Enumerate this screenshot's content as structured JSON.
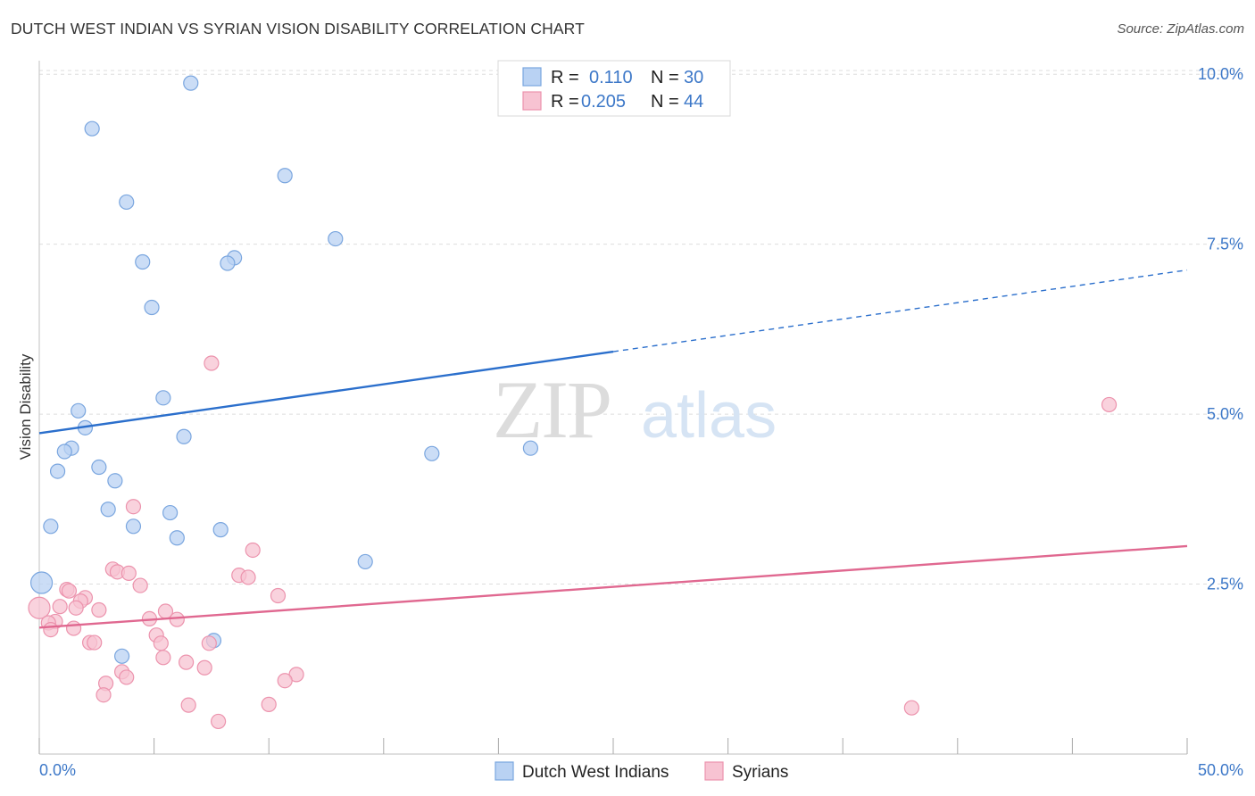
{
  "title": "DUTCH WEST INDIAN VS SYRIAN VISION DISABILITY CORRELATION CHART",
  "source": "Source: ZipAtlas.com",
  "watermark": {
    "zip": "ZIP",
    "atlas": "atlas"
  },
  "legend": {
    "series": [
      {
        "r_label": "R =",
        "r_value": "0.110",
        "n_label": "N =",
        "n_value": "30"
      },
      {
        "r_label": "R =",
        "r_value": "0.205",
        "n_label": "N =",
        "n_value": "44"
      }
    ]
  },
  "bottom_legend": [
    "Dutch West Indians",
    "Syrians"
  ],
  "colors": {
    "blue_fill": "#b9d2f3",
    "blue_stroke": "#7aa6df",
    "blue_line": "#2b6fcc",
    "pink_fill": "#f7c3d2",
    "pink_stroke": "#ec93ad",
    "pink_line": "#e06890",
    "tick_text": "#3d78c8",
    "grid": "#dddddd"
  },
  "chart_data": {
    "type": "scatter",
    "title": "DUTCH WEST INDIAN VS SYRIAN VISION DISABILITY CORRELATION CHART",
    "xlabel": "",
    "ylabel": "Vision Disability",
    "xlim": [
      0,
      50
    ],
    "ylim": [
      0,
      10.2
    ],
    "x_tick_labels": [
      "0.0%",
      "50.0%"
    ],
    "y_ticks": [
      2.5,
      5.0,
      7.5,
      10.0
    ],
    "y_tick_labels": [
      "2.5%",
      "5.0%",
      "7.5%",
      "10.0%"
    ],
    "series": [
      {
        "name": "Dutch West Indians",
        "r": 0.11,
        "n": 30,
        "points": [
          [
            6.6,
            9.87
          ],
          [
            2.3,
            9.2
          ],
          [
            10.7,
            8.51
          ],
          [
            3.8,
            8.12
          ],
          [
            12.9,
            7.58
          ],
          [
            8.5,
            7.3
          ],
          [
            4.5,
            7.24
          ],
          [
            8.2,
            7.22
          ],
          [
            4.9,
            6.57
          ],
          [
            5.4,
            5.24
          ],
          [
            1.7,
            5.05
          ],
          [
            2.0,
            4.8
          ],
          [
            6.3,
            4.67
          ],
          [
            1.4,
            4.5
          ],
          [
            1.1,
            4.45
          ],
          [
            17.1,
            4.42
          ],
          [
            21.4,
            4.5
          ],
          [
            0.8,
            4.16
          ],
          [
            2.6,
            4.22
          ],
          [
            3.3,
            4.02
          ],
          [
            3.0,
            3.6
          ],
          [
            5.7,
            3.55
          ],
          [
            0.5,
            3.35
          ],
          [
            4.1,
            3.35
          ],
          [
            7.9,
            3.3
          ],
          [
            6.0,
            3.18
          ],
          [
            14.2,
            2.83
          ],
          [
            0.1,
            2.52
          ],
          [
            7.6,
            1.67
          ],
          [
            3.6,
            1.44
          ]
        ],
        "trend": {
          "x0": 0,
          "y0": 4.72,
          "x1": 25,
          "y1": 5.92,
          "x_extend": 50,
          "y_extend": 7.12
        }
      },
      {
        "name": "Syrians",
        "r": 0.205,
        "n": 44,
        "points": [
          [
            7.5,
            5.75
          ],
          [
            46.6,
            5.14
          ],
          [
            4.1,
            3.64
          ],
          [
            9.3,
            3.0
          ],
          [
            3.2,
            2.72
          ],
          [
            3.4,
            2.68
          ],
          [
            3.9,
            2.66
          ],
          [
            8.7,
            2.63
          ],
          [
            9.1,
            2.6
          ],
          [
            4.4,
            2.48
          ],
          [
            1.2,
            2.42
          ],
          [
            1.3,
            2.4
          ],
          [
            10.4,
            2.33
          ],
          [
            2.0,
            2.3
          ],
          [
            1.8,
            2.25
          ],
          [
            0.9,
            2.17
          ],
          [
            1.6,
            2.15
          ],
          [
            2.6,
            2.12
          ],
          [
            5.5,
            2.1
          ],
          [
            0.0,
            2.15
          ],
          [
            4.8,
            1.99
          ],
          [
            6.0,
            1.98
          ],
          [
            0.7,
            1.95
          ],
          [
            0.4,
            1.93
          ],
          [
            1.5,
            1.85
          ],
          [
            0.5,
            1.83
          ],
          [
            5.1,
            1.75
          ],
          [
            2.2,
            1.64
          ],
          [
            2.4,
            1.64
          ],
          [
            5.3,
            1.63
          ],
          [
            7.4,
            1.63
          ],
          [
            5.4,
            1.42
          ],
          [
            6.4,
            1.35
          ],
          [
            7.2,
            1.27
          ],
          [
            3.6,
            1.21
          ],
          [
            11.2,
            1.17
          ],
          [
            3.8,
            1.13
          ],
          [
            10.7,
            1.08
          ],
          [
            2.9,
            1.04
          ],
          [
            2.8,
            0.87
          ],
          [
            6.5,
            0.72
          ],
          [
            10.0,
            0.73
          ],
          [
            38.0,
            0.68
          ],
          [
            7.8,
            0.48
          ]
        ],
        "trend": {
          "x0": 0,
          "y0": 1.86,
          "x1": 50,
          "y1": 3.06
        }
      }
    ]
  }
}
